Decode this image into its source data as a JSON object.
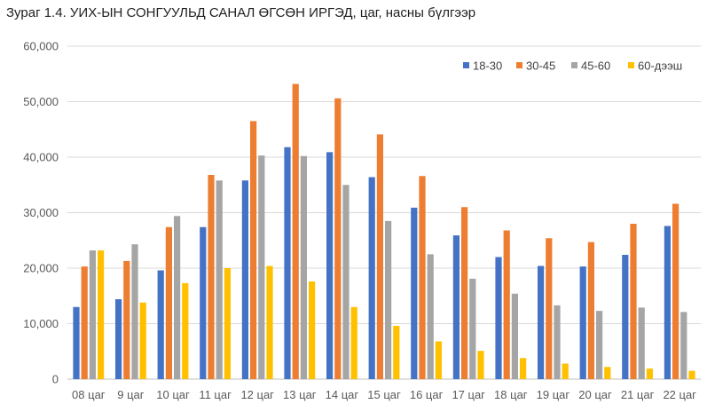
{
  "title": "Зураг 1.4. УИХ-ЫН СОНГУУЛЬД САНАЛ ӨГСӨН ИРГЭД, цаг, насны бүлгээр",
  "chart_data": {
    "type": "bar",
    "categories": [
      "08 цаг",
      "9 цаг",
      "10 цаг",
      "11 цаг",
      "12 цаг",
      "13 цаг",
      "14 цаг",
      "15 цаг",
      "16 цаг",
      "17 цаг",
      "18 цаг",
      "19 цаг",
      "20 цаг",
      "21 цаг",
      "22 цаг"
    ],
    "series": [
      {
        "name": "18-30",
        "color": "#4472C4",
        "values": [
          13000,
          14400,
          19600,
          27400,
          35800,
          41800,
          40900,
          36400,
          30900,
          25900,
          22000,
          20400,
          20300,
          22400,
          27600
        ]
      },
      {
        "name": "30-45",
        "color": "#ED7D31",
        "values": [
          20300,
          21300,
          27400,
          36800,
          46500,
          53200,
          50600,
          44100,
          36600,
          31000,
          26800,
          25400,
          24700,
          28000,
          31600
        ]
      },
      {
        "name": "45-60",
        "color": "#A5A5A5",
        "values": [
          23200,
          24300,
          29400,
          35800,
          40300,
          40200,
          35000,
          28500,
          22500,
          18100,
          15400,
          13300,
          12300,
          12900,
          12100
        ]
      },
      {
        "name": "60-дээш",
        "color": "#FFC000",
        "values": [
          23200,
          13800,
          17300,
          20000,
          20400,
          17600,
          13000,
          9600,
          6800,
          5100,
          3800,
          2800,
          2200,
          1900,
          1500
        ]
      }
    ],
    "yticks": [
      "0",
      "10,000",
      "20,000",
      "30,000",
      "40,000",
      "50,000",
      "60,000"
    ],
    "ylim": [
      0,
      60000
    ],
    "grid": true,
    "legend": "top-right"
  }
}
